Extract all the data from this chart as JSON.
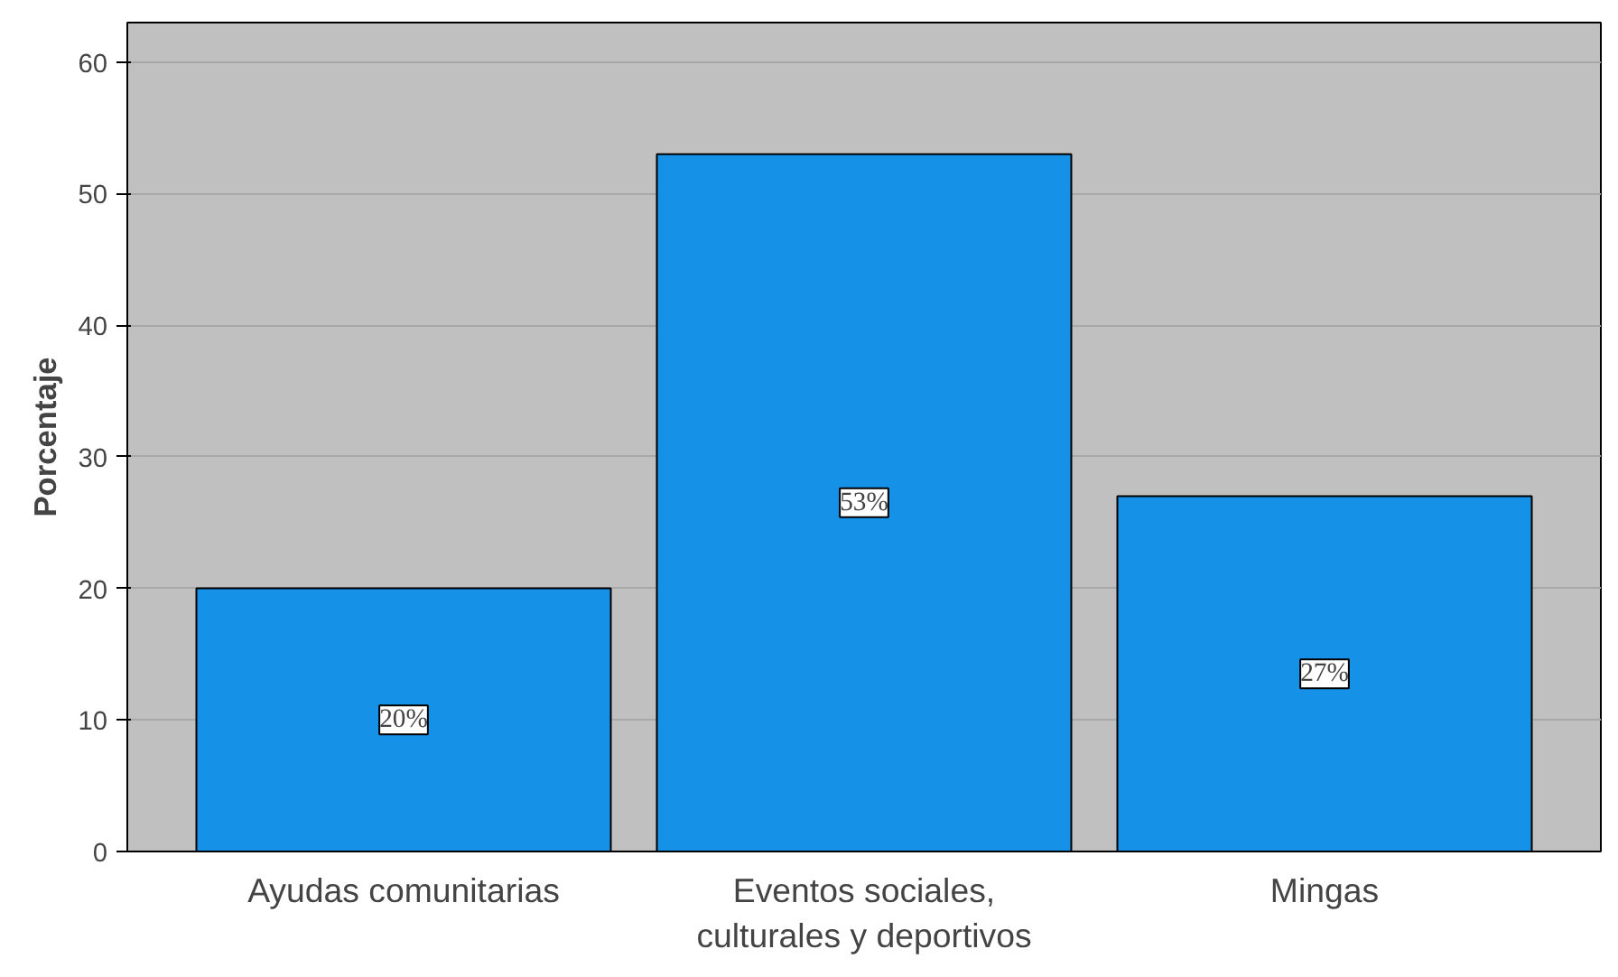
{
  "chart_data": {
    "type": "bar",
    "ylabel": "Porcentaje",
    "categories": [
      "Ayudas comunitarias",
      "Eventos sociales,\nculturales y deportivos",
      "Mingas"
    ],
    "values": [
      20,
      53,
      27
    ],
    "value_labels": [
      "20%",
      "53%",
      "27%"
    ],
    "color": "#1591e8",
    "ylim": [
      0,
      63
    ],
    "yticks": [
      0,
      10,
      20,
      30,
      40,
      50,
      60
    ],
    "grid": "y"
  }
}
